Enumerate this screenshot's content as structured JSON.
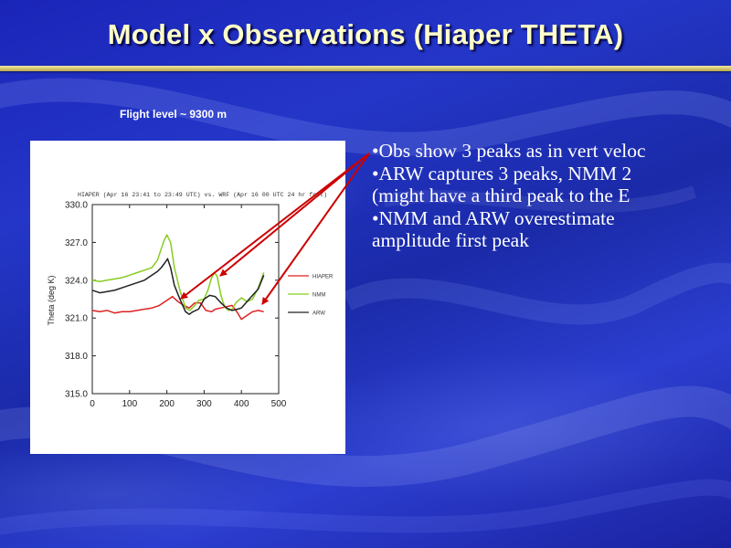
{
  "slide": {
    "title": "Model x Observations (Hiaper THETA)",
    "flight_level": "Flight level ~ 9300 m",
    "bullets": [
      "•Obs show 3 peaks as in vert veloc",
      "•ARW captures 3 peaks, NMM 2",
      "(might have a third peak to the E",
      "•NMM and ARW overestimate",
      "amplitude first peak"
    ],
    "colors": {
      "background": "#2030c0",
      "title_text": "#ffffc8",
      "title_rule": "#e6d88a",
      "arrow": "#cc0000"
    }
  },
  "chart_data": {
    "type": "line",
    "title": "HIAPER (Apr 16 23:41 to 23:49 UTC) vs. WRF (Apr 16 00 UTC 24 hr fcst)",
    "xlabel": "",
    "ylabel": "Theta (deg K)",
    "xlim": [
      0,
      500
    ],
    "ylim": [
      315.0,
      330.0
    ],
    "x_ticks": [
      "0",
      "100",
      "200",
      "300",
      "400",
      "500"
    ],
    "y_ticks": [
      "315.0",
      "318.0",
      "321.0",
      "324.0",
      "327.0",
      "330.0"
    ],
    "grid": false,
    "legend_position": "right",
    "series": [
      {
        "name": "HIAPER",
        "color": "#dd2222",
        "x": [
          0,
          20,
          40,
          60,
          80,
          100,
          120,
          140,
          160,
          180,
          200,
          215,
          230,
          245,
          260,
          275,
          290,
          305,
          320,
          330,
          345,
          360,
          375,
          390,
          400,
          415,
          430,
          445,
          460
        ],
        "y": [
          321.6,
          321.5,
          321.6,
          321.4,
          321.5,
          321.5,
          321.6,
          321.7,
          321.8,
          322.0,
          322.4,
          322.7,
          322.3,
          322.0,
          321.8,
          322.2,
          322.2,
          321.6,
          321.5,
          321.7,
          321.8,
          321.9,
          322.0,
          321.4,
          320.9,
          321.2,
          321.5,
          321.6,
          321.5
        ]
      },
      {
        "name": "NMM",
        "color": "#88cc22",
        "x": [
          0,
          20,
          40,
          60,
          80,
          100,
          120,
          140,
          160,
          175,
          185,
          192,
          200,
          210,
          220,
          235,
          250,
          262,
          275,
          285,
          300,
          310,
          320,
          328,
          335,
          345,
          355,
          365,
          375,
          385,
          400,
          415,
          430,
          445,
          460
        ],
        "y": [
          324.0,
          323.9,
          324.0,
          324.1,
          324.2,
          324.4,
          324.6,
          324.8,
          325.0,
          325.6,
          326.5,
          327.1,
          327.6,
          327.0,
          325.0,
          323.2,
          321.8,
          321.6,
          322.0,
          322.4,
          322.5,
          323.2,
          324.2,
          324.6,
          324.3,
          322.8,
          321.9,
          321.6,
          321.7,
          322.2,
          322.6,
          322.3,
          322.5,
          323.4,
          324.6
        ]
      },
      {
        "name": "ARW",
        "color": "#222222",
        "x": [
          0,
          20,
          40,
          60,
          80,
          100,
          120,
          140,
          160,
          175,
          185,
          195,
          202,
          210,
          220,
          235,
          250,
          260,
          270,
          285,
          300,
          315,
          330,
          345,
          360,
          375,
          390,
          400,
          415,
          430,
          445,
          460
        ],
        "y": [
          323.2,
          323.0,
          323.1,
          323.2,
          323.4,
          323.6,
          323.8,
          324.0,
          324.4,
          324.7,
          325.0,
          325.4,
          325.7,
          325.0,
          323.6,
          322.5,
          321.5,
          321.3,
          321.5,
          321.7,
          322.5,
          322.8,
          322.7,
          322.2,
          321.8,
          321.6,
          321.7,
          321.8,
          322.3,
          322.8,
          323.3,
          324.4
        ]
      }
    ]
  }
}
